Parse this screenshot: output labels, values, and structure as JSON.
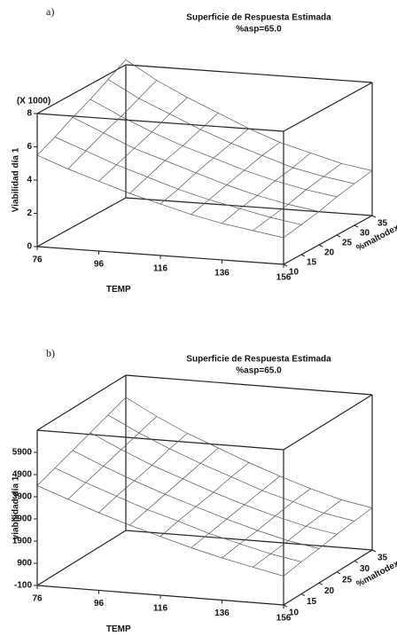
{
  "chart_data": [
    {
      "type": "surface",
      "panel": "a)",
      "title": "Superficie de Respuesta Estimada",
      "subtitle": "%asp=65.0",
      "x_label": "TEMP",
      "y_label": "%maltodex",
      "z_label": "Viabilidad día 1",
      "z_multiplier": "(X 1000)",
      "xlim": [
        76,
        156
      ],
      "xticks": [
        76,
        96,
        116,
        136,
        156
      ],
      "ylim": [
        10,
        35
      ],
      "yticks": [
        10,
        15,
        20,
        25,
        30,
        35
      ],
      "zlim": [
        0,
        8
      ],
      "zticks": [
        0,
        2,
        4,
        6,
        8
      ],
      "x_grid": [
        76,
        86,
        96,
        106,
        116,
        126,
        136,
        146,
        156
      ],
      "y_grid": [
        10,
        15,
        20,
        25,
        30,
        35
      ],
      "z": [
        [
          5.5,
          4.8,
          4.2,
          3.6,
          3.1,
          2.6,
          2.2,
          1.9,
          1.6
        ],
        [
          6.0,
          5.3,
          4.6,
          4.0,
          3.4,
          2.9,
          2.5,
          2.1,
          1.8
        ],
        [
          6.6,
          5.8,
          5.0,
          4.4,
          3.8,
          3.2,
          2.7,
          2.3,
          2.0
        ],
        [
          7.1,
          6.2,
          5.4,
          4.7,
          4.1,
          3.5,
          3.0,
          2.6,
          2.3
        ],
        [
          7.7,
          6.7,
          5.9,
          5.1,
          4.4,
          3.8,
          3.2,
          2.8,
          2.5
        ],
        [
          8.3,
          7.2,
          6.3,
          5.5,
          4.7,
          4.0,
          3.5,
          3.0,
          2.7
        ]
      ]
    },
    {
      "type": "surface",
      "panel": "b)",
      "title": "Superficie de Respuesta Estimada",
      "subtitle": "%asp=65.0",
      "x_label": "TEMP",
      "y_label": "%maltodex",
      "z_label": "viabilidad día 1",
      "xlim": [
        76,
        156
      ],
      "xticks": [
        76,
        96,
        116,
        136,
        156
      ],
      "ylim": [
        10,
        35
      ],
      "yticks": [
        10,
        15,
        20,
        25,
        30,
        35
      ],
      "zlim": [
        -100,
        6900
      ],
      "zticks": [
        -100,
        900,
        1900,
        2900,
        3900,
        4900,
        5900
      ],
      "x_grid": [
        76,
        86,
        96,
        106,
        116,
        126,
        136,
        146,
        156
      ],
      "y_grid": [
        10,
        15,
        20,
        25,
        30,
        35
      ],
      "z": [
        [
          4400,
          3900,
          3400,
          2950,
          2550,
          2150,
          1800,
          1500,
          1200
        ],
        [
          4700,
          4150,
          3650,
          3150,
          2750,
          2300,
          1950,
          1600,
          1350
        ],
        [
          5000,
          4400,
          3850,
          3350,
          2900,
          2450,
          2050,
          1700,
          1450
        ],
        [
          5300,
          4650,
          4050,
          3550,
          3050,
          2600,
          2200,
          1850,
          1600
        ],
        [
          5600,
          4900,
          4300,
          3750,
          3250,
          2750,
          2350,
          1950,
          1700
        ],
        [
          5900,
          5150,
          4500,
          3950,
          3400,
          2900,
          2450,
          2050,
          1800
        ]
      ]
    }
  ]
}
